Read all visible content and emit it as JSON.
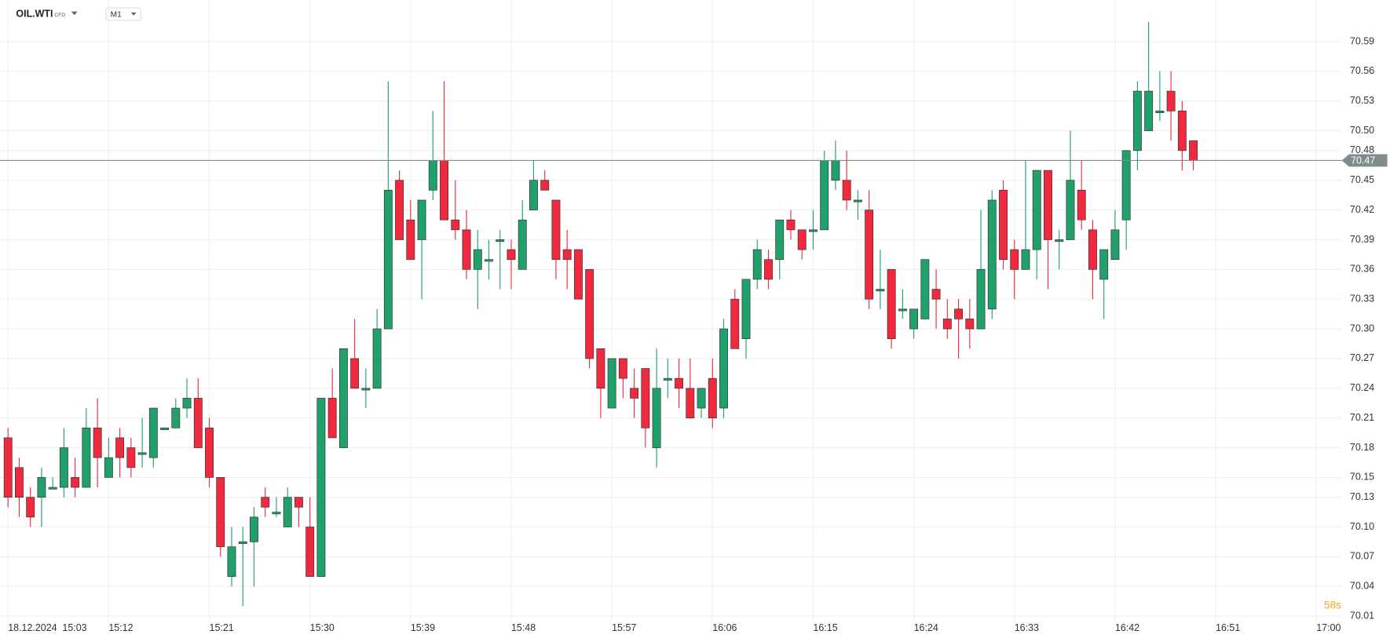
{
  "chart_data": {
    "type": "candlestick",
    "title": "OIL.WTI",
    "instrument_kind": "CFD",
    "timeframe": "M1",
    "date_label": "18.12.2024",
    "countdown": "58s",
    "current_price": 70.47,
    "up_color": "#22a06b",
    "down_color": "#f0293e",
    "grid": true,
    "ylim": [
      70.005,
      70.632
    ],
    "yticks": [
      70.01,
      70.04,
      70.07,
      {
        "value": 70.1,
        "label": "70.10"
      },
      70.13,
      70.15,
      70.18,
      70.21,
      70.24,
      70.27,
      {
        "value": 70.3,
        "label": "70.30"
      },
      70.33,
      70.36,
      70.39,
      70.42,
      70.45,
      70.48,
      {
        "value": 70.5,
        "label": "70.50"
      },
      70.53,
      70.56,
      70.59
    ],
    "categories": [
      "15:03",
      null,
      null,
      null,
      null,
      null,
      null,
      null,
      null,
      "15:12",
      null,
      null,
      null,
      null,
      null,
      null,
      null,
      null,
      "15:21",
      null,
      null,
      null,
      null,
      null,
      null,
      null,
      null,
      "15:30",
      null,
      null,
      null,
      null,
      null,
      null,
      null,
      null,
      "15:39",
      null,
      null,
      null,
      null,
      null,
      null,
      null,
      null,
      "15:48",
      null,
      null,
      null,
      null,
      null,
      null,
      null,
      null,
      "15:57",
      null,
      null,
      null,
      null,
      null,
      null,
      null,
      null,
      "16:06",
      null,
      null,
      null,
      null,
      null,
      null,
      null,
      null,
      "16:15",
      null,
      null,
      null,
      null,
      null,
      null,
      null,
      null,
      "16:24",
      null,
      null,
      null,
      null,
      null,
      null,
      null,
      null,
      "16:33",
      null,
      null,
      null,
      null,
      null,
      null,
      null,
      null,
      "16:42",
      null,
      null,
      null,
      null,
      null,
      null,
      null,
      null,
      "16:51",
      null,
      null,
      null,
      null,
      null,
      null,
      null,
      null,
      "17:00"
    ],
    "open": [
      70.19,
      70.16,
      70.13,
      70.13,
      70.14,
      70.14,
      70.15,
      70.14,
      70.2,
      70.15,
      70.19,
      70.18,
      70.175,
      70.17,
      70.2,
      70.2,
      70.22,
      70.23,
      70.2,
      70.15,
      70.05,
      70.085,
      70.085,
      70.13,
      70.115,
      70.1,
      70.13,
      70.1,
      70.05,
      70.23,
      70.18,
      70.27,
      70.24,
      70.24,
      70.3,
      70.45,
      70.41,
      70.39,
      70.44,
      70.47,
      70.41,
      70.4,
      70.36,
      70.37,
      70.39,
      70.38,
      70.36,
      70.42,
      70.45,
      70.43,
      70.38,
      70.38,
      70.36,
      70.28,
      70.22,
      70.27,
      70.24,
      70.26,
      70.18,
      70.25,
      70.25,
      70.24,
      70.22,
      70.25,
      70.22,
      70.33,
      70.29,
      70.35,
      70.37,
      70.37,
      70.41,
      70.4,
      70.4,
      70.4,
      70.45,
      70.45,
      70.43,
      70.42,
      70.34,
      70.36,
      70.32,
      70.3,
      70.31,
      70.34,
      70.31,
      70.32,
      70.31,
      70.3,
      70.32,
      70.44,
      70.38,
      70.36,
      70.38,
      70.46,
      70.39,
      70.39,
      70.44,
      70.4,
      70.35,
      70.37,
      70.41,
      70.48,
      70.5,
      70.52,
      70.54,
      70.52,
      70.49,
      null,
      null,
      null,
      null,
      null,
      null,
      null,
      null,
      null,
      null,
      null
    ],
    "high": [
      70.2,
      70.17,
      70.14,
      70.16,
      70.15,
      70.2,
      70.17,
      70.22,
      70.23,
      70.19,
      70.2,
      70.19,
      70.21,
      70.22,
      70.2,
      70.23,
      70.25,
      70.25,
      70.21,
      70.15,
      70.1,
      70.1,
      70.12,
      70.14,
      70.13,
      70.14,
      70.13,
      70.13,
      70.23,
      70.26,
      70.28,
      70.31,
      70.26,
      70.32,
      70.55,
      70.46,
      70.43,
      70.43,
      70.52,
      70.55,
      70.45,
      70.42,
      70.4,
      70.39,
      70.4,
      70.39,
      70.43,
      70.47,
      70.46,
      70.43,
      70.4,
      70.38,
      70.36,
      70.28,
      70.27,
      70.27,
      70.26,
      70.26,
      70.28,
      70.27,
      70.27,
      70.27,
      70.24,
      70.27,
      70.31,
      70.34,
      70.35,
      70.39,
      70.38,
      70.41,
      70.42,
      70.4,
      70.42,
      70.48,
      70.49,
      70.48,
      70.44,
      70.44,
      70.38,
      70.36,
      70.34,
      70.32,
      70.37,
      70.36,
      70.33,
      70.33,
      70.33,
      70.42,
      70.44,
      70.45,
      70.39,
      70.47,
      70.46,
      70.46,
      70.4,
      70.5,
      70.47,
      70.41,
      70.38,
      70.42,
      70.48,
      70.55,
      70.61,
      70.56,
      70.56,
      70.53,
      70.49,
      null,
      null,
      null,
      null,
      null,
      null,
      null,
      null,
      null,
      null,
      null
    ],
    "low": [
      70.12,
      70.11,
      70.1,
      70.1,
      70.14,
      70.13,
      70.13,
      70.14,
      70.14,
      70.15,
      70.15,
      70.15,
      70.16,
      70.16,
      70.2,
      70.2,
      70.21,
      70.18,
      70.14,
      70.07,
      70.04,
      70.02,
      70.04,
      70.11,
      70.11,
      70.1,
      70.1,
      70.05,
      70.05,
      70.19,
      70.18,
      70.24,
      70.22,
      70.24,
      70.3,
      70.39,
      70.37,
      70.33,
      70.43,
      70.41,
      70.39,
      70.35,
      70.32,
      70.35,
      70.34,
      70.34,
      70.36,
      70.42,
      70.44,
      70.35,
      70.34,
      70.33,
      70.26,
      70.21,
      70.22,
      70.23,
      70.21,
      70.18,
      70.16,
      70.23,
      70.22,
      70.21,
      70.21,
      70.2,
      70.21,
      70.28,
      70.27,
      70.34,
      70.34,
      70.35,
      70.39,
      70.37,
      70.38,
      70.4,
      70.44,
      70.42,
      70.41,
      70.32,
      70.32,
      70.28,
      70.31,
      70.29,
      70.31,
      70.3,
      70.29,
      70.27,
      70.28,
      70.3,
      70.31,
      70.36,
      70.33,
      70.36,
      70.35,
      70.34,
      70.36,
      70.39,
      70.4,
      70.33,
      70.31,
      70.37,
      70.38,
      70.46,
      70.5,
      70.51,
      70.49,
      70.46,
      70.46,
      null,
      null,
      null,
      null,
      null,
      null,
      null,
      null,
      null,
      null,
      null
    ],
    "close": [
      70.13,
      70.13,
      70.11,
      70.15,
      70.14,
      70.18,
      70.14,
      70.2,
      70.17,
      70.17,
      70.17,
      70.16,
      70.175,
      70.22,
      70.2,
      70.22,
      70.23,
      70.18,
      70.15,
      70.08,
      70.08,
      70.085,
      70.11,
      70.12,
      70.115,
      70.13,
      70.12,
      70.05,
      70.23,
      70.19,
      70.28,
      70.24,
      70.24,
      70.3,
      70.44,
      70.39,
      70.37,
      70.43,
      70.47,
      70.41,
      70.4,
      70.36,
      70.38,
      70.37,
      70.39,
      70.37,
      70.41,
      70.45,
      70.44,
      70.37,
      70.37,
      70.33,
      70.27,
      70.24,
      70.27,
      70.25,
      70.23,
      70.2,
      70.24,
      70.25,
      70.24,
      70.21,
      70.24,
      70.21,
      70.3,
      70.28,
      70.35,
      70.38,
      70.35,
      70.41,
      70.4,
      70.38,
      70.4,
      70.47,
      70.47,
      70.43,
      70.43,
      70.33,
      70.34,
      70.29,
      70.32,
      70.32,
      70.37,
      70.33,
      70.3,
      70.31,
      70.3,
      70.36,
      70.43,
      70.37,
      70.36,
      70.38,
      70.46,
      70.39,
      70.39,
      70.45,
      70.41,
      70.36,
      70.38,
      70.4,
      70.48,
      70.54,
      70.54,
      70.52,
      70.52,
      70.48,
      70.47,
      null,
      null,
      null,
      null,
      null,
      null,
      null,
      null,
      null,
      null,
      null
    ]
  }
}
